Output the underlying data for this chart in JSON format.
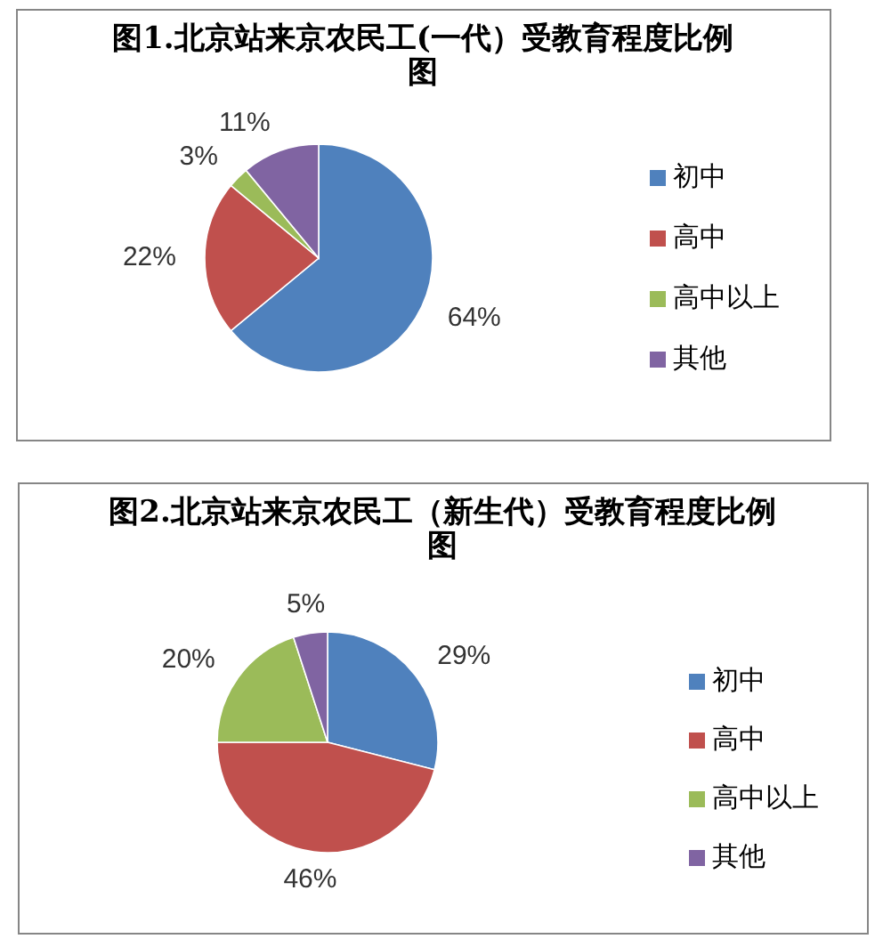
{
  "chart_data": [
    {
      "type": "pie",
      "title": "图1.北京站来京农民工(一代）受教育程度比例图",
      "categories": [
        "初中",
        "高中",
        "高中以上",
        "其他"
      ],
      "values": [
        64,
        22,
        3,
        11
      ],
      "value_labels": [
        "64%",
        "22%",
        "3%",
        "11%"
      ],
      "colors": [
        "#4f81bd",
        "#c0504d",
        "#9bbb59",
        "#8064a2"
      ],
      "legend": "right"
    },
    {
      "type": "pie",
      "title": "图2.北京站来京农民工（新生代）受教育程度比例图",
      "categories": [
        "初中",
        "高中",
        "高中以上",
        "其他"
      ],
      "values": [
        29,
        46,
        20,
        5
      ],
      "value_labels": [
        "29%",
        "46%",
        "20%",
        "5%"
      ],
      "colors": [
        "#4f81bd",
        "#c0504d",
        "#9bbb59",
        "#8064a2"
      ],
      "legend": "right"
    }
  ]
}
